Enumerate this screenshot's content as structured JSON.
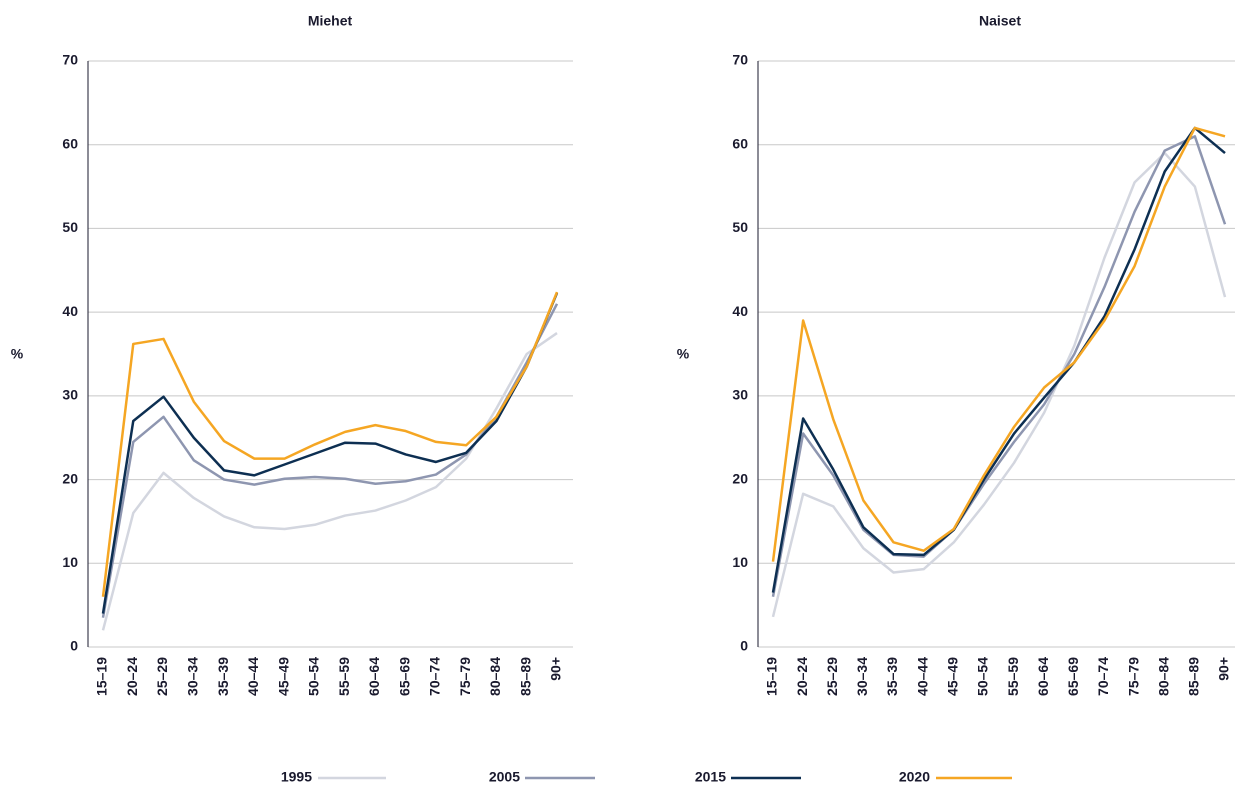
{
  "chart_data": [
    {
      "type": "line",
      "title": "Miehet",
      "ylabel": "%",
      "categories": [
        "15–19",
        "20–24",
        "25–29",
        "30–34",
        "35–39",
        "40–44",
        "45–49",
        "50–54",
        "55–59",
        "60–64",
        "65–69",
        "70–74",
        "75–79",
        "80–84",
        "85–89",
        "90+"
      ],
      "ylim": [
        0,
        70
      ],
      "yticks": [
        0,
        10,
        20,
        30,
        40,
        50,
        60,
        70
      ],
      "grid": true,
      "series": [
        {
          "name": "1995",
          "color": "#d3d6df",
          "values": [
            2,
            16,
            20.8,
            17.8,
            15.6,
            14.3,
            14.1,
            14.6,
            15.7,
            16.3,
            17.5,
            19.1,
            22.5,
            28.5,
            35,
            37.5
          ]
        },
        {
          "name": "2005",
          "color": "#8e96b0",
          "values": [
            3.5,
            24.5,
            27.5,
            22.3,
            20,
            19.4,
            20.1,
            20.3,
            20.1,
            19.5,
            19.8,
            20.6,
            23,
            27.5,
            34,
            41
          ]
        },
        {
          "name": "2015",
          "color": "#0d2f52",
          "values": [
            4,
            27,
            29.9,
            25,
            21.1,
            20.5,
            21.8,
            23.1,
            24.4,
            24.3,
            23,
            22.1,
            23.2,
            27,
            33.5,
            42.3
          ]
        },
        {
          "name": "2020",
          "color": "#f5a623",
          "values": [
            6,
            36.2,
            36.8,
            29.3,
            24.6,
            22.5,
            22.5,
            24.2,
            25.7,
            26.5,
            25.8,
            24.5,
            24.1,
            27.5,
            33.5,
            42.4
          ]
        }
      ]
    },
    {
      "type": "line",
      "title": "Naiset",
      "ylabel": "%",
      "categories": [
        "15–19",
        "20–24",
        "25–29",
        "30–34",
        "35–39",
        "40–44",
        "45–49",
        "50–54",
        "55–59",
        "60–64",
        "65–69",
        "70–74",
        "75–79",
        "80–84",
        "85–89",
        "90+"
      ],
      "ylim": [
        0,
        70
      ],
      "yticks": [
        0,
        10,
        20,
        30,
        40,
        50,
        60,
        70
      ],
      "grid": true,
      "series": [
        {
          "name": "1995",
          "color": "#d3d6df",
          "values": [
            3.6,
            18.3,
            16.8,
            11.8,
            8.9,
            9.3,
            12.5,
            17,
            22,
            28,
            36,
            46.5,
            55.5,
            59,
            55,
            41.8
          ]
        },
        {
          "name": "2005",
          "color": "#8e96b0",
          "values": [
            6,
            25.5,
            20.5,
            14,
            11,
            10.8,
            14,
            19.5,
            24.5,
            29,
            35,
            43,
            52,
            59.3,
            61,
            50.5
          ]
        },
        {
          "name": "2015",
          "color": "#0d2f52",
          "values": [
            6.5,
            27.3,
            21.2,
            14.3,
            11.1,
            11,
            14,
            20,
            25.5,
            29.8,
            34,
            39.5,
            47.5,
            56.8,
            62,
            59
          ]
        },
        {
          "name": "2020",
          "color": "#f5a623",
          "values": [
            10.2,
            39,
            27.2,
            17.5,
            12.5,
            11.5,
            14.1,
            20.5,
            26.3,
            31,
            34,
            39,
            45.5,
            55,
            62,
            61
          ]
        }
      ]
    }
  ]
}
